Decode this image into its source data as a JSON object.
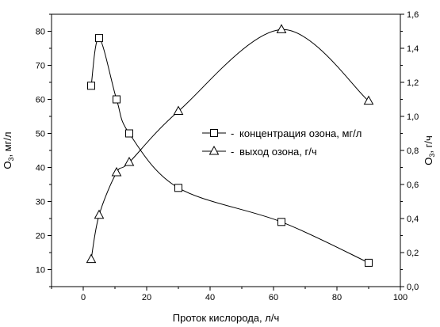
{
  "chart_data": {
    "type": "line",
    "title": "",
    "xlabel": "Проток кислорода, л/ч",
    "ylabel_left": {
      "main": "O",
      "sub": "3",
      "rest": ", мг/л"
    },
    "ylabel_right": {
      "main": "O",
      "sub": "3",
      "rest": ", г/ч"
    },
    "xlim": [
      -10,
      100
    ],
    "ylim_left": [
      5,
      85
    ],
    "ylim_right": [
      0,
      1.6
    ],
    "x_ticks": [
      0,
      20,
      40,
      60,
      80,
      100
    ],
    "y_left_ticks": [
      10,
      20,
      30,
      40,
      50,
      60,
      70,
      80
    ],
    "y_right_ticks": [
      "0,0",
      "0,2",
      "0,4",
      "0,6",
      "0,8",
      "1,0",
      "1,2",
      "1,4",
      "1,6"
    ],
    "grid": false,
    "legend_position": "center-right",
    "series": [
      {
        "name": "концентрация озона, мг/л",
        "axis": "left",
        "marker": "square",
        "legend_prefix": "-",
        "x": [
          2.5,
          5,
          10.5,
          14.5,
          30,
          62.5,
          90
        ],
        "y": [
          64,
          78,
          60,
          50,
          34,
          24,
          12
        ]
      },
      {
        "name": "выход озона, г/ч",
        "axis": "right",
        "marker": "triangle",
        "legend_prefix": "-",
        "x": [
          2.5,
          5,
          10.5,
          14.5,
          30,
          62.5,
          90
        ],
        "y": [
          0.16,
          0.42,
          0.67,
          0.73,
          1.03,
          1.51,
          1.09
        ]
      }
    ]
  }
}
